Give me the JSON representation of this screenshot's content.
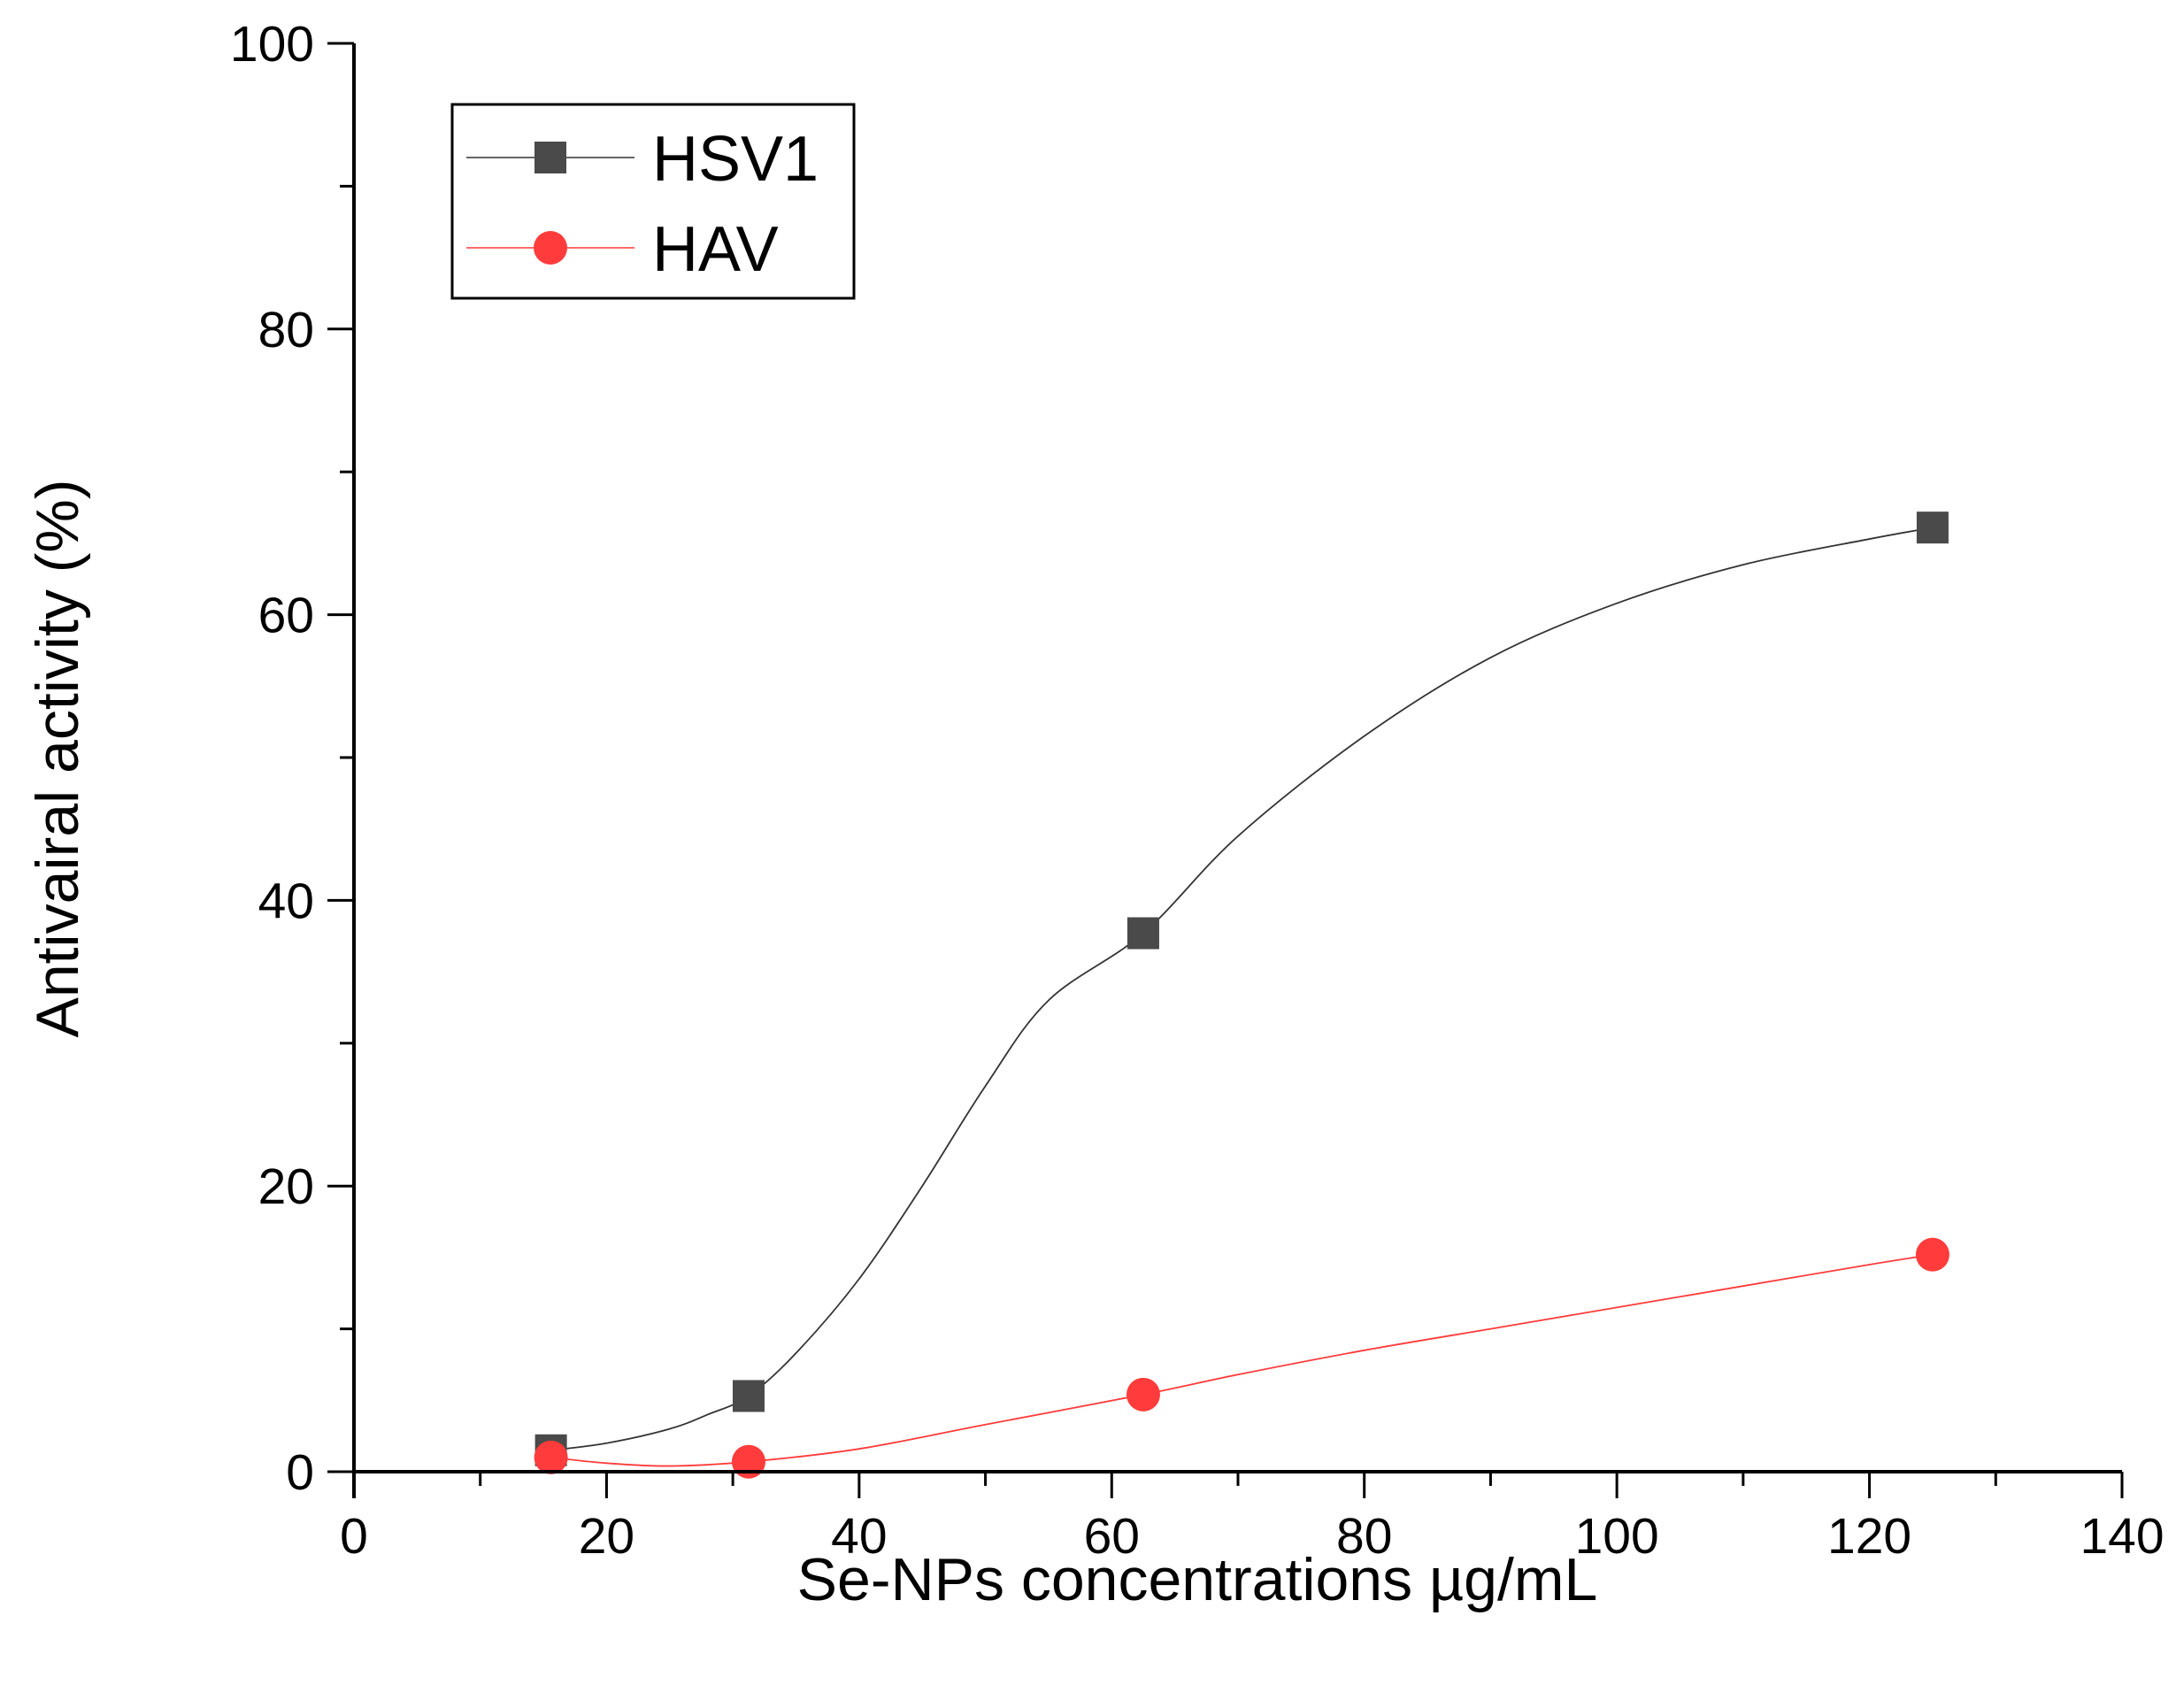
{
  "chart_data": {
    "type": "line",
    "title": "",
    "xlabel": "Se-NPs concentrations µg/mL",
    "ylabel": "Antivairal activity (%)",
    "xlim": [
      0,
      140
    ],
    "ylim": [
      0,
      100
    ],
    "x_ticks": [
      "0",
      "20",
      "40",
      "60",
      "80",
      "100",
      "120",
      "140"
    ],
    "y_ticks": [
      "0",
      "20",
      "40",
      "60",
      "80",
      "100"
    ],
    "x_tick_values": [
      0,
      20,
      40,
      60,
      80,
      100,
      120,
      140
    ],
    "y_tick_values": [
      0,
      20,
      40,
      60,
      80,
      100
    ],
    "x_minor_step": 10,
    "y_minor_step": 10,
    "grid": false,
    "legend_position": "top-left",
    "series": [
      {
        "name": "HSV1",
        "marker": "square",
        "color": "#4a4a4a",
        "line_color": "#333333",
        "x": [
          15.6,
          31.25,
          62.5,
          125
        ],
        "y": [
          1.5,
          5.3,
          37.7,
          66.1
        ],
        "curve_x": [
          15.6,
          20,
          25,
          28,
          31.25,
          35,
          40,
          45,
          50,
          55,
          62.5,
          70,
          80,
          90,
          100,
          110,
          120,
          125
        ],
        "curve_y": [
          1.5,
          2.0,
          3.0,
          4.0,
          5.3,
          8.3,
          13.5,
          20.0,
          27.0,
          33.0,
          37.7,
          44.5,
          51.5,
          57.0,
          60.8,
          63.5,
          65.3,
          66.1
        ]
      },
      {
        "name": "HAV",
        "marker": "circle",
        "color": "#ff3b3b",
        "line_color": "#ff3b3b",
        "x": [
          15.6,
          31.25,
          62.5,
          125
        ],
        "y": [
          1.0,
          0.7,
          5.4,
          15.2
        ],
        "curve_x": [
          15.6,
          20,
          25,
          31.25,
          40,
          50,
          62.5,
          70,
          80,
          90,
          100,
          110,
          120,
          125
        ],
        "curve_y": [
          1.0,
          0.6,
          0.4,
          0.7,
          1.6,
          3.3,
          5.4,
          6.8,
          8.5,
          10.0,
          11.5,
          13.0,
          14.5,
          15.2
        ]
      }
    ]
  }
}
